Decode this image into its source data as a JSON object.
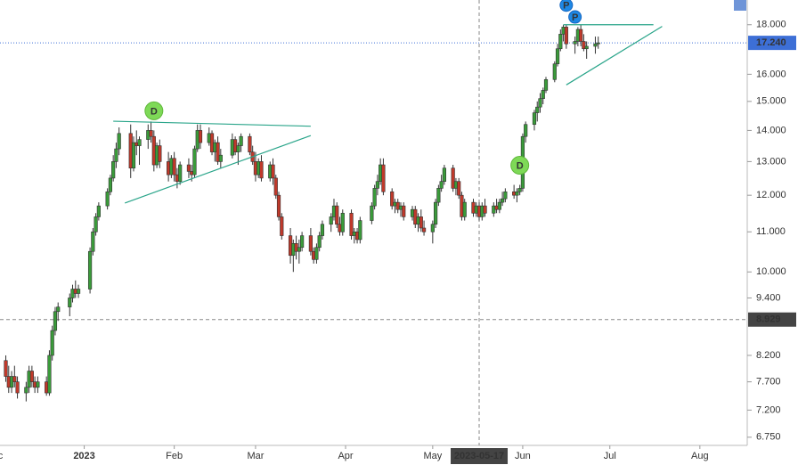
{
  "chart_data": {
    "type": "candlestick",
    "x": [
      "2022-12-05",
      "2022-12-06",
      "2022-12-07",
      "2022-12-08",
      "2022-12-09",
      "2022-12-12",
      "2022-12-13",
      "2022-12-14",
      "2022-12-15",
      "2022-12-16",
      "2022-12-19",
      "2022-12-20",
      "2022-12-21",
      "2022-12-22",
      "2022-12-23",
      "2022-12-27",
      "2022-12-28",
      "2022-12-29",
      "2022-12-30",
      "2023-01-03",
      "2023-01-04",
      "2023-01-05",
      "2023-01-06",
      "2023-01-09",
      "2023-01-10",
      "2023-01-11",
      "2023-01-12",
      "2023-01-13",
      "2023-01-17",
      "2023-01-18",
      "2023-01-19",
      "2023-01-20",
      "2023-01-23",
      "2023-01-24",
      "2023-01-25",
      "2023-01-26",
      "2023-01-27",
      "2023-01-30",
      "2023-01-31",
      "2023-02-01",
      "2023-02-02",
      "2023-02-03",
      "2023-02-06",
      "2023-02-07",
      "2023-02-08",
      "2023-02-09",
      "2023-02-10",
      "2023-02-13",
      "2023-02-14",
      "2023-02-15",
      "2023-02-16",
      "2023-02-17",
      "2023-02-21",
      "2023-02-22",
      "2023-02-23",
      "2023-02-24",
      "2023-02-27",
      "2023-02-28",
      "2023-03-01",
      "2023-03-02",
      "2023-03-03",
      "2023-03-06",
      "2023-03-07",
      "2023-03-08",
      "2023-03-09",
      "2023-03-10",
      "2023-03-13",
      "2023-03-14",
      "2023-03-15",
      "2023-03-16",
      "2023-03-17",
      "2023-03-20",
      "2023-03-21",
      "2023-03-22",
      "2023-03-23",
      "2023-03-24",
      "2023-03-27",
      "2023-03-28",
      "2023-03-29",
      "2023-03-30",
      "2023-03-31",
      "2023-04-03",
      "2023-04-04",
      "2023-04-05",
      "2023-04-06",
      "2023-04-10",
      "2023-04-11",
      "2023-04-12",
      "2023-04-13",
      "2023-04-14",
      "2023-04-17",
      "2023-04-18",
      "2023-04-19",
      "2023-04-20",
      "2023-04-21",
      "2023-04-24",
      "2023-04-25",
      "2023-04-26",
      "2023-04-27",
      "2023-04-28",
      "2023-05-01",
      "2023-05-02",
      "2023-05-03",
      "2023-05-04",
      "2023-05-05",
      "2023-05-08",
      "2023-05-09",
      "2023-05-10",
      "2023-05-11",
      "2023-05-12",
      "2023-05-15",
      "2023-05-16",
      "2023-05-17",
      "2023-05-18",
      "2023-05-19",
      "2023-05-22",
      "2023-05-23",
      "2023-05-24",
      "2023-05-25",
      "2023-05-26",
      "2023-05-29",
      "2023-05-30",
      "2023-05-31",
      "2023-06-01",
      "2023-06-02",
      "2023-06-05",
      "2023-06-06",
      "2023-06-07",
      "2023-06-08",
      "2023-06-09",
      "2023-06-12",
      "2023-06-13",
      "2023-06-14",
      "2023-06-15",
      "2023-06-16",
      "2023-06-19",
      "2023-06-20",
      "2023-06-21",
      "2023-06-22",
      "2023-06-23",
      "2023-06-26",
      "2023-06-27"
    ],
    "series": [
      {
        "up_color": "#3a9b3a",
        "down_color": "#c0392b",
        "values": [
          [
            8.1,
            8.2,
            7.7,
            7.8
          ],
          [
            7.8,
            8.0,
            7.5,
            7.6
          ],
          [
            7.6,
            7.9,
            7.5,
            7.8
          ],
          [
            7.8,
            8.0,
            7.6,
            7.7
          ],
          [
            7.7,
            7.8,
            7.4,
            7.5
          ],
          [
            7.5,
            7.7,
            7.35,
            7.6
          ],
          [
            7.6,
            8.0,
            7.5,
            7.9
          ],
          [
            7.9,
            8.0,
            7.6,
            7.7
          ],
          [
            7.7,
            7.8,
            7.5,
            7.6
          ],
          [
            7.6,
            7.8,
            7.5,
            7.7
          ],
          [
            7.7,
            7.8,
            7.45,
            7.5
          ],
          [
            7.5,
            8.3,
            7.45,
            8.2
          ],
          [
            8.2,
            8.8,
            8.1,
            8.7
          ],
          [
            8.7,
            9.2,
            8.6,
            9.1
          ],
          [
            9.1,
            9.3,
            8.9,
            9.2
          ],
          [
            9.2,
            9.5,
            9.0,
            9.4
          ],
          [
            9.4,
            9.7,
            9.3,
            9.6
          ],
          [
            9.6,
            9.8,
            9.4,
            9.5
          ],
          [
            9.5,
            9.7,
            9.4,
            9.6
          ],
          [
            9.6,
            10.6,
            9.5,
            10.5
          ],
          [
            10.5,
            11.1,
            10.4,
            11.0
          ],
          [
            11.0,
            11.5,
            10.9,
            11.4
          ],
          [
            11.4,
            11.8,
            11.3,
            11.7
          ],
          [
            11.7,
            12.2,
            11.6,
            12.1
          ],
          [
            12.1,
            12.6,
            12.0,
            12.5
          ],
          [
            12.5,
            13.2,
            12.4,
            13.0
          ],
          [
            13.0,
            13.6,
            12.8,
            13.4
          ],
          [
            13.4,
            14.1,
            13.2,
            13.9
          ],
          [
            13.9,
            14.2,
            12.5,
            12.8
          ],
          [
            12.8,
            13.8,
            12.7,
            13.6
          ],
          [
            13.6,
            14.0,
            13.2,
            13.5
          ],
          [
            13.5,
            13.8,
            12.9,
            13.7
          ],
          [
            13.7,
            14.2,
            13.4,
            14.0
          ],
          [
            14.0,
            14.3,
            13.6,
            13.8
          ],
          [
            13.8,
            14.0,
            12.7,
            12.9
          ],
          [
            12.9,
            13.6,
            12.8,
            13.5
          ],
          [
            13.5,
            13.7,
            12.8,
            13.0
          ],
          [
            13.0,
            13.3,
            12.4,
            12.6
          ],
          [
            12.6,
            13.2,
            12.5,
            13.1
          ],
          [
            13.1,
            13.3,
            12.4,
            12.6
          ],
          [
            12.6,
            12.8,
            12.2,
            12.4
          ],
          [
            12.4,
            13.0,
            12.3,
            12.9
          ],
          [
            12.9,
            13.1,
            12.5,
            12.7
          ],
          [
            12.7,
            12.9,
            12.4,
            12.6
          ],
          [
            12.6,
            13.5,
            12.5,
            13.4
          ],
          [
            13.4,
            14.2,
            13.3,
            14.0
          ],
          [
            14.0,
            14.2,
            13.4,
            13.6
          ],
          [
            13.6,
            14.1,
            13.5,
            13.9
          ],
          [
            13.9,
            14.0,
            13.2,
            13.3
          ],
          [
            13.3,
            13.7,
            13.0,
            13.6
          ],
          [
            13.6,
            13.8,
            12.9,
            13.0
          ],
          [
            13.0,
            13.4,
            12.8,
            13.2
          ],
          [
            13.2,
            13.9,
            13.1,
            13.7
          ],
          [
            13.7,
            13.8,
            13.2,
            13.3
          ],
          [
            13.3,
            13.6,
            12.9,
            13.5
          ],
          [
            13.5,
            13.9,
            13.3,
            13.8
          ],
          [
            13.8,
            13.9,
            13.2,
            13.3
          ],
          [
            13.3,
            13.5,
            12.9,
            13.0
          ],
          [
            13.0,
            13.3,
            12.4,
            12.6
          ],
          [
            12.6,
            13.1,
            12.5,
            13.0
          ],
          [
            13.0,
            13.2,
            12.4,
            12.5
          ],
          [
            12.5,
            13.0,
            12.4,
            12.9
          ],
          [
            12.9,
            13.1,
            12.3,
            12.5
          ],
          [
            12.5,
            12.6,
            11.9,
            12.0
          ],
          [
            12.0,
            12.1,
            11.3,
            11.4
          ],
          [
            11.4,
            11.5,
            10.8,
            10.9
          ],
          [
            10.9,
            11.1,
            10.2,
            10.4
          ],
          [
            10.4,
            10.8,
            10.0,
            10.7
          ],
          [
            10.7,
            10.9,
            10.3,
            10.5
          ],
          [
            10.5,
            10.8,
            10.2,
            10.6
          ],
          [
            10.6,
            11.0,
            10.5,
            10.9
          ],
          [
            10.9,
            11.1,
            10.4,
            10.5
          ],
          [
            10.5,
            10.6,
            10.2,
            10.3
          ],
          [
            10.3,
            10.7,
            10.2,
            10.6
          ],
          [
            10.6,
            11.0,
            10.5,
            10.9
          ],
          [
            10.9,
            11.3,
            10.8,
            11.2
          ],
          [
            11.2,
            11.5,
            11.0,
            11.4
          ],
          [
            11.4,
            11.9,
            11.3,
            11.7
          ],
          [
            11.7,
            11.8,
            11.1,
            11.2
          ],
          [
            11.2,
            11.4,
            10.9,
            11.0
          ],
          [
            11.0,
            11.6,
            10.9,
            11.5
          ],
          [
            11.5,
            11.6,
            10.8,
            10.9
          ],
          [
            10.9,
            11.1,
            10.7,
            11.0
          ],
          [
            11.0,
            11.1,
            10.7,
            10.8
          ],
          [
            10.8,
            11.4,
            10.7,
            11.3
          ],
          [
            11.3,
            11.8,
            11.2,
            11.7
          ],
          [
            11.7,
            12.3,
            11.6,
            12.2
          ],
          [
            12.2,
            12.6,
            12.0,
            12.4
          ],
          [
            12.4,
            13.1,
            12.3,
            12.9
          ],
          [
            12.9,
            13.1,
            12.0,
            12.1
          ],
          [
            12.1,
            12.2,
            11.6,
            11.7
          ],
          [
            11.7,
            11.9,
            11.5,
            11.8
          ],
          [
            11.8,
            11.9,
            11.5,
            11.6
          ],
          [
            11.6,
            11.8,
            11.4,
            11.7
          ],
          [
            11.7,
            11.8,
            11.3,
            11.4
          ],
          [
            11.4,
            11.7,
            11.3,
            11.6
          ],
          [
            11.6,
            11.7,
            11.1,
            11.2
          ],
          [
            11.2,
            11.5,
            11.0,
            11.4
          ],
          [
            11.4,
            11.6,
            11.0,
            11.1
          ],
          [
            11.1,
            11.3,
            10.9,
            11.0
          ],
          [
            11.0,
            11.3,
            10.7,
            11.2
          ],
          [
            11.2,
            11.9,
            11.1,
            11.8
          ],
          [
            11.8,
            12.3,
            11.7,
            12.2
          ],
          [
            12.2,
            12.6,
            12.1,
            12.4
          ],
          [
            12.4,
            12.9,
            12.3,
            12.8
          ],
          [
            12.8,
            12.9,
            12.1,
            12.2
          ],
          [
            12.2,
            12.5,
            12.0,
            12.4
          ],
          [
            12.4,
            12.5,
            11.9,
            12.0
          ],
          [
            12.0,
            12.1,
            11.3,
            11.4
          ],
          [
            11.4,
            11.9,
            11.3,
            11.8
          ],
          [
            11.8,
            11.9,
            11.4,
            11.5
          ],
          [
            11.5,
            11.8,
            11.4,
            11.7
          ],
          [
            11.7,
            11.8,
            11.3,
            11.4
          ],
          [
            11.4,
            11.8,
            11.3,
            11.7
          ],
          [
            11.7,
            11.9,
            11.4,
            11.5
          ],
          [
            11.5,
            11.8,
            11.4,
            11.7
          ],
          [
            11.7,
            11.9,
            11.5,
            11.6
          ],
          [
            11.6,
            11.9,
            11.5,
            11.8
          ],
          [
            11.8,
            12.1,
            11.7,
            11.9
          ],
          [
            11.9,
            12.2,
            11.8,
            12.1
          ],
          [
            12.1,
            12.3,
            11.9,
            12.0
          ],
          [
            12.0,
            12.2,
            11.8,
            12.1
          ],
          [
            12.1,
            12.3,
            12.0,
            12.2
          ],
          [
            12.2,
            13.9,
            12.1,
            13.8
          ],
          [
            13.8,
            14.3,
            13.6,
            14.2
          ],
          [
            14.2,
            14.7,
            14.0,
            14.6
          ],
          [
            14.6,
            15.0,
            14.3,
            14.8
          ],
          [
            14.8,
            15.3,
            14.6,
            15.1
          ],
          [
            15.1,
            15.5,
            14.9,
            15.4
          ],
          [
            15.4,
            15.9,
            15.3,
            15.8
          ],
          [
            15.8,
            16.5,
            15.7,
            16.4
          ],
          [
            16.4,
            17.2,
            16.3,
            17.0
          ],
          [
            17.0,
            17.8,
            16.9,
            17.6
          ],
          [
            17.6,
            18.0,
            17.3,
            17.9
          ],
          [
            17.9,
            18.0,
            17.0,
            17.2
          ],
          [
            17.2,
            17.5,
            16.8,
            17.3
          ],
          [
            17.3,
            17.9,
            17.1,
            17.8
          ],
          [
            17.8,
            18.0,
            17.1,
            17.3
          ],
          [
            17.3,
            17.6,
            16.9,
            17.0
          ],
          [
            17.0,
            17.3,
            16.6,
            17.1
          ],
          [
            17.1,
            17.5,
            16.8,
            17.2
          ],
          [
            17.2,
            17.5,
            17.0,
            17.24
          ]
        ]
      }
    ],
    "xlim": [
      "2022-12-03",
      "2023-08-17"
    ],
    "xticks": [
      {
        "value": "2022-12-01",
        "label": "Dec"
      },
      {
        "value": "2023-01-01",
        "label": "2023"
      },
      {
        "value": "2023-02-01",
        "label": "Feb"
      },
      {
        "value": "2023-03-01",
        "label": "Mar"
      },
      {
        "value": "2023-04-01",
        "label": "Apr"
      },
      {
        "value": "2023-05-01",
        "label": "May"
      },
      {
        "value": "2023-06-01",
        "label": "Jun"
      },
      {
        "value": "2023-07-01",
        "label": "Jul"
      },
      {
        "value": "2023-08-01",
        "label": "Aug"
      }
    ],
    "ylim": [
      6.62,
      19.09
    ],
    "log_scale": true,
    "yticks": [
      {
        "value": 6.75,
        "label": "6.750"
      },
      {
        "value": 7.2,
        "label": "7.200"
      },
      {
        "value": 7.7,
        "label": "7.700"
      },
      {
        "value": 8.2,
        "label": "8.200"
      },
      {
        "value": 9.4,
        "label": "9.400"
      },
      {
        "value": 10,
        "label": "10.000"
      },
      {
        "value": 11,
        "label": "11.000"
      },
      {
        "value": 12,
        "label": "12.000"
      },
      {
        "value": 13,
        "label": "13.000"
      },
      {
        "value": 14,
        "label": "14.000"
      },
      {
        "value": 15,
        "label": "15.000"
      },
      {
        "value": 16,
        "label": "16.000"
      },
      {
        "value": 18,
        "label": "18.000"
      }
    ],
    "last_price": {
      "value": 17.24,
      "label": "17.240",
      "color": "#3d6fd6"
    },
    "crosshair": {
      "x": "2023-05-17",
      "y": {
        "value": 8.929,
        "label": "8.929"
      }
    },
    "markers": [
      {
        "x": "2023-01-25",
        "label": "D",
        "color": "#7ed957"
      },
      {
        "x": "2023-05-31",
        "label": "D",
        "color": "#7ed957"
      },
      {
        "x": "2023-06-16",
        "label": "P",
        "color": "#1e88e5"
      },
      {
        "x": "2023-06-19",
        "label": "P",
        "color": "#1e88e5"
      }
    ],
    "trendline_color": "#2aa58a",
    "trendlines": [
      {
        "x": [
          "2023-01-11",
          "2023-03-20"
        ],
        "y": [
          14.31,
          14.14
        ]
      },
      {
        "x": [
          "2023-01-15",
          "2023-03-20"
        ],
        "y": [
          11.78,
          13.83
        ]
      },
      {
        "x": [
          "2023-06-15",
          "2023-07-16"
        ],
        "y": [
          18.0,
          18.0
        ]
      },
      {
        "x": [
          "2023-06-16",
          "2023-07-19"
        ],
        "y": [
          15.6,
          17.93
        ]
      }
    ]
  }
}
